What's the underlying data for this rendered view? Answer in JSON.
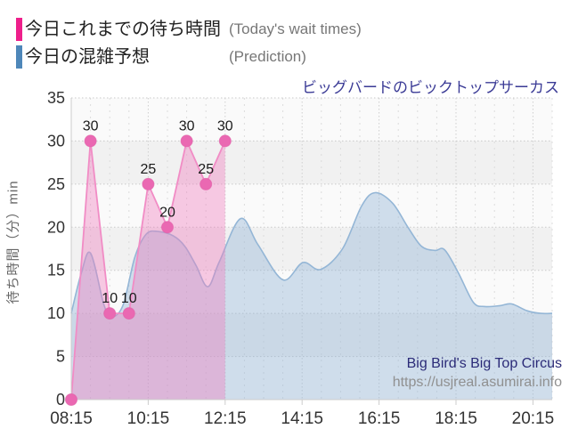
{
  "legend": {
    "today": {
      "jp": "今日これまでの待ち時間",
      "en": "(Today's wait times)",
      "color": "#ee1f8b"
    },
    "prediction": {
      "jp": "今日の混雑予想",
      "en": "(Prediction)",
      "color": "#4e87b9"
    }
  },
  "title": "ビッグバードのビックトップサーカス",
  "attribution": {
    "name": "Big Bird's Big Top Circus",
    "url": "https://usjreal.asumirai.info"
  },
  "chart_data": {
    "type": "area",
    "title": "ビッグバードのビックトップサーカス",
    "xlabel": "",
    "ylabel": "待ち時間（分）min",
    "ylim": [
      0,
      35
    ],
    "yticks": [
      "0",
      "5",
      "10",
      "15",
      "20",
      "25",
      "30",
      "35"
    ],
    "xticks": [
      "08:15",
      "10:15",
      "12:15",
      "14:15",
      "16:15",
      "18:15",
      "20:15"
    ],
    "xtick_hours": [
      8.25,
      10.25,
      12.25,
      14.25,
      16.25,
      18.25,
      20.25
    ],
    "x_hours_range": [
      8.25,
      20.75
    ],
    "grid": "on",
    "legend_position": "top-left-outside",
    "series": [
      {
        "name": "今日これまでの待ち時間 (Today's wait times)",
        "kind": "line-markers-area",
        "line_color": "#f18cc5",
        "marker_color": "#ea68b2",
        "marker_edge": "#e05fa8",
        "fill_color": "rgba(240,125,190,0.40)",
        "label_color": "#1a1a1a",
        "points": [
          [
            8.25,
            0
          ],
          [
            8.75,
            30
          ],
          [
            9.25,
            10
          ],
          [
            9.75,
            10
          ],
          [
            10.25,
            25
          ],
          [
            10.75,
            20
          ],
          [
            11.25,
            30
          ],
          [
            11.75,
            25
          ],
          [
            12.25,
            30
          ]
        ],
        "point_labels": [
          "",
          "30",
          "10",
          "10",
          "25",
          "20",
          "30",
          "25",
          "30"
        ]
      },
      {
        "name": "今日の混雑予想 (Prediction)",
        "kind": "smooth-area",
        "line_color": "#94b6d6",
        "fill_color": "rgba(148,182,214,0.42)",
        "points": [
          [
            8.25,
            10
          ],
          [
            8.5,
            14.5
          ],
          [
            8.75,
            17
          ],
          [
            9.1,
            11
          ],
          [
            9.3,
            9.6
          ],
          [
            9.6,
            11
          ],
          [
            9.9,
            16.5
          ],
          [
            10.2,
            19.2
          ],
          [
            10.5,
            19.5
          ],
          [
            10.9,
            19.0
          ],
          [
            11.2,
            17.8
          ],
          [
            11.5,
            15.5
          ],
          [
            11.8,
            13.1
          ],
          [
            12.1,
            16.0
          ],
          [
            12.65,
            21.0
          ],
          [
            13.1,
            18.0
          ],
          [
            13.75,
            13.9
          ],
          [
            14.27,
            15.9
          ],
          [
            14.73,
            15.1
          ],
          [
            15.3,
            17.5
          ],
          [
            15.8,
            22.5
          ],
          [
            16.15,
            24.0
          ],
          [
            16.6,
            22.8
          ],
          [
            17.0,
            20.0
          ],
          [
            17.35,
            17.8
          ],
          [
            17.7,
            17.3
          ],
          [
            17.95,
            17.4
          ],
          [
            18.3,
            14.8
          ],
          [
            18.7,
            11.3
          ],
          [
            19.0,
            10.8
          ],
          [
            19.4,
            10.9
          ],
          [
            19.7,
            11.1
          ],
          [
            20.1,
            10.3
          ],
          [
            20.45,
            10.0
          ],
          [
            20.75,
            10.0
          ]
        ]
      }
    ],
    "style": {
      "stripe_light": "#fafafa",
      "stripe_dark": "#f1f1f1",
      "h_grid": "#c9c9c9",
      "v_grid_minor": "#dcdcdc",
      "v_grid_major": "#cfcfcf",
      "axis": "#cccccc",
      "tick_text": "#333333"
    }
  }
}
